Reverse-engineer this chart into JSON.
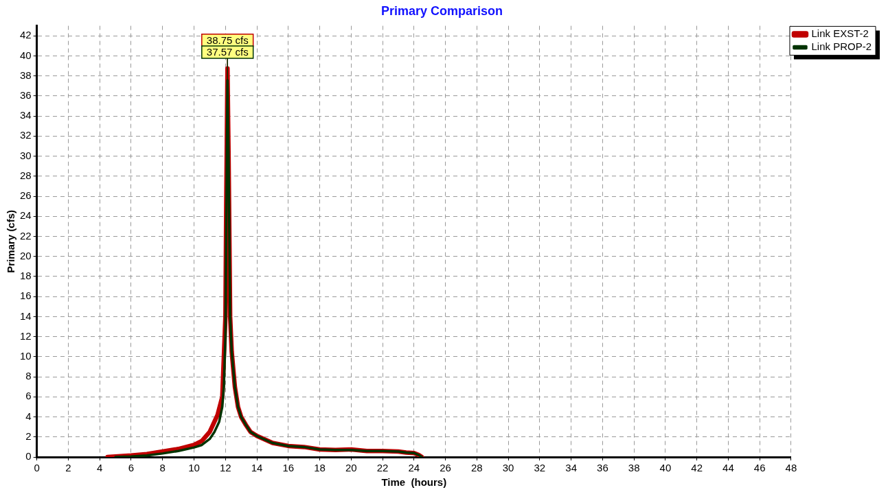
{
  "chart_data": {
    "type": "line",
    "title": "Primary Comparison",
    "xlabel": "Time  (hours)",
    "ylabel": "Primary (cfs)",
    "xlim": [
      0,
      48
    ],
    "xticks": [
      0,
      2,
      4,
      6,
      8,
      10,
      12,
      14,
      16,
      18,
      20,
      22,
      24,
      26,
      28,
      30,
      32,
      34,
      36,
      38,
      40,
      42,
      44,
      46,
      48
    ],
    "ylim": [
      0,
      43
    ],
    "yticks": [
      0,
      2,
      4,
      6,
      8,
      10,
      12,
      14,
      16,
      18,
      20,
      22,
      24,
      26,
      28,
      30,
      32,
      34,
      36,
      38,
      40,
      42
    ],
    "grid": true,
    "legend": "top right",
    "marker": "none",
    "line_style": "solid",
    "series": [
      {
        "name": "Link EXST-2",
        "color": "#c00000",
        "x": [
          4.5,
          5,
          6,
          7,
          8,
          9,
          10,
          10.5,
          11,
          11.5,
          11.8,
          12,
          12.05,
          12.13,
          12.2,
          12.25,
          12.3,
          12.4,
          12.6,
          12.8,
          13,
          13.3,
          13.6,
          14,
          15,
          16,
          17,
          18,
          19,
          20,
          21,
          22,
          23,
          23.5,
          24,
          24.3,
          24.5
        ],
        "values": [
          0,
          0.05,
          0.15,
          0.3,
          0.55,
          0.8,
          1.2,
          1.6,
          2.5,
          4.2,
          6,
          14,
          25,
          38.75,
          30,
          22,
          14,
          10.5,
          7,
          5,
          4,
          3.2,
          2.5,
          2.1,
          1.4,
          1.1,
          1,
          0.75,
          0.7,
          0.75,
          0.6,
          0.6,
          0.55,
          0.45,
          0.4,
          0.2,
          0
        ]
      },
      {
        "name": "Link PROP-2",
        "color": "#003300",
        "x": [
          5,
          6,
          7,
          8,
          9,
          10,
          10.5,
          11,
          11.3,
          11.6,
          11.8,
          11.9,
          12,
          12.05,
          12.13,
          12.2,
          12.25,
          12.3,
          12.4,
          12.6,
          12.8,
          13,
          13.3,
          13.6,
          14,
          15,
          16,
          17,
          18,
          19,
          20,
          21,
          22,
          23,
          23.5,
          24,
          24.3,
          24.5
        ],
        "values": [
          0,
          0.05,
          0.15,
          0.35,
          0.6,
          0.95,
          1.2,
          1.8,
          2.5,
          3.5,
          5,
          7,
          12,
          22,
          37.57,
          30,
          22,
          14,
          10.5,
          7,
          5,
          4,
          3.2,
          2.5,
          2.1,
          1.4,
          1.1,
          1,
          0.75,
          0.7,
          0.7,
          0.6,
          0.6,
          0.55,
          0.45,
          0.4,
          0.2,
          0
        ]
      }
    ],
    "annotations": [
      {
        "text": "38.75 cfs",
        "x": 12.13,
        "y": 38.75
      },
      {
        "text": "37.57 cfs",
        "x": 12.13,
        "y": 37.57
      }
    ]
  }
}
